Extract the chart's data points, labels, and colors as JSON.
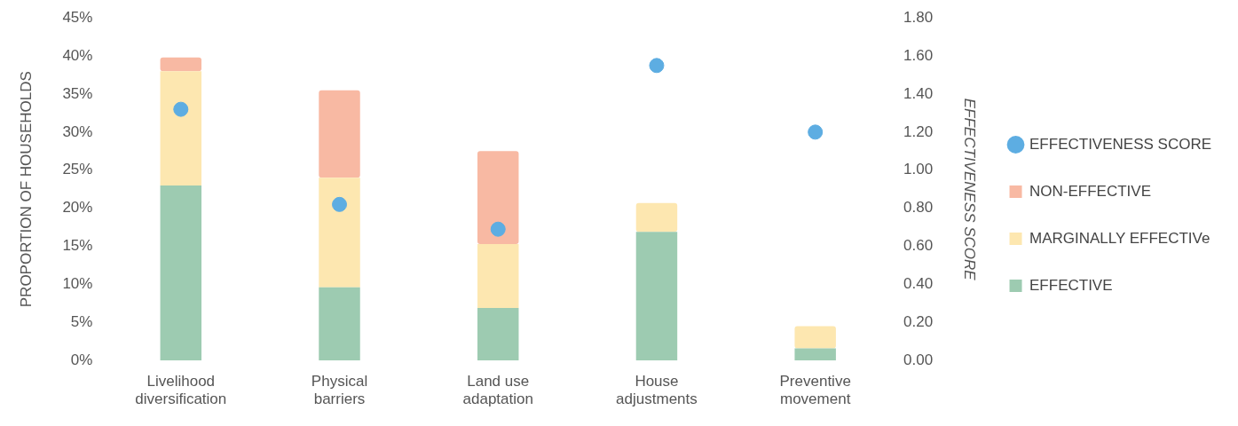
{
  "chart_data": {
    "type": "bar",
    "stacked": true,
    "ylabel": "PROPORTION OF HOUSEHOLDS",
    "y2label": "EFFECTIVENESS SCORE",
    "categories": [
      "Livelihood diversification",
      "Physical barriers",
      "Land use adaptation",
      "House adjustments",
      "Preventive movement"
    ],
    "series": [
      {
        "name": "EFFECTIVE",
        "color": "#9dcbb1",
        "values": [
          23,
          9.6,
          6.9,
          16.9,
          1.6
        ]
      },
      {
        "name": "MARGINALLY EFFECTIVe",
        "color": "#fde7b0",
        "values": [
          15,
          14.4,
          8.4,
          3.8,
          2.9
        ]
      },
      {
        "name": "NON-EFFECTIVE",
        "color": "#f8b9a3",
        "values": [
          1.8,
          11.5,
          12.2,
          null,
          null
        ]
      },
      {
        "name": "EFFECTIVENESS SCORE",
        "type": "scatter",
        "axis": "y2",
        "color": "#5dade2",
        "marker": "circle",
        "values": [
          1.32,
          0.82,
          0.69,
          1.55,
          1.2
        ]
      }
    ],
    "ylim": [
      0,
      45
    ],
    "yticks": [
      {
        "value": 0,
        "label": "0%"
      },
      {
        "value": 5,
        "label": "5%"
      },
      {
        "value": 10,
        "label": "10%"
      },
      {
        "value": 15,
        "label": "15%"
      },
      {
        "value": 20,
        "label": "20%"
      },
      {
        "value": 25,
        "label": "25%"
      },
      {
        "value": 30,
        "label": "30%"
      },
      {
        "value": 35,
        "label": "35%"
      },
      {
        "value": 40,
        "label": "40%"
      },
      {
        "value": 45,
        "label": "45%"
      }
    ],
    "y2lim": [
      0,
      1.8
    ],
    "y2ticks": [
      {
        "value": 0,
        "label": "0.00"
      },
      {
        "value": 0.2,
        "label": "0.20"
      },
      {
        "value": 0.4,
        "label": "0.40"
      },
      {
        "value": 0.6,
        "label": "0.60"
      },
      {
        "value": 0.8,
        "label": "0.80"
      },
      {
        "value": 1,
        "label": "1.00"
      },
      {
        "value": 1.2,
        "label": "1.20"
      },
      {
        "value": 1.4,
        "label": "1.40"
      },
      {
        "value": 1.6,
        "label": "1.60"
      },
      {
        "value": 1.8,
        "label": "1.80"
      }
    ],
    "grid": false,
    "legend": "right"
  }
}
